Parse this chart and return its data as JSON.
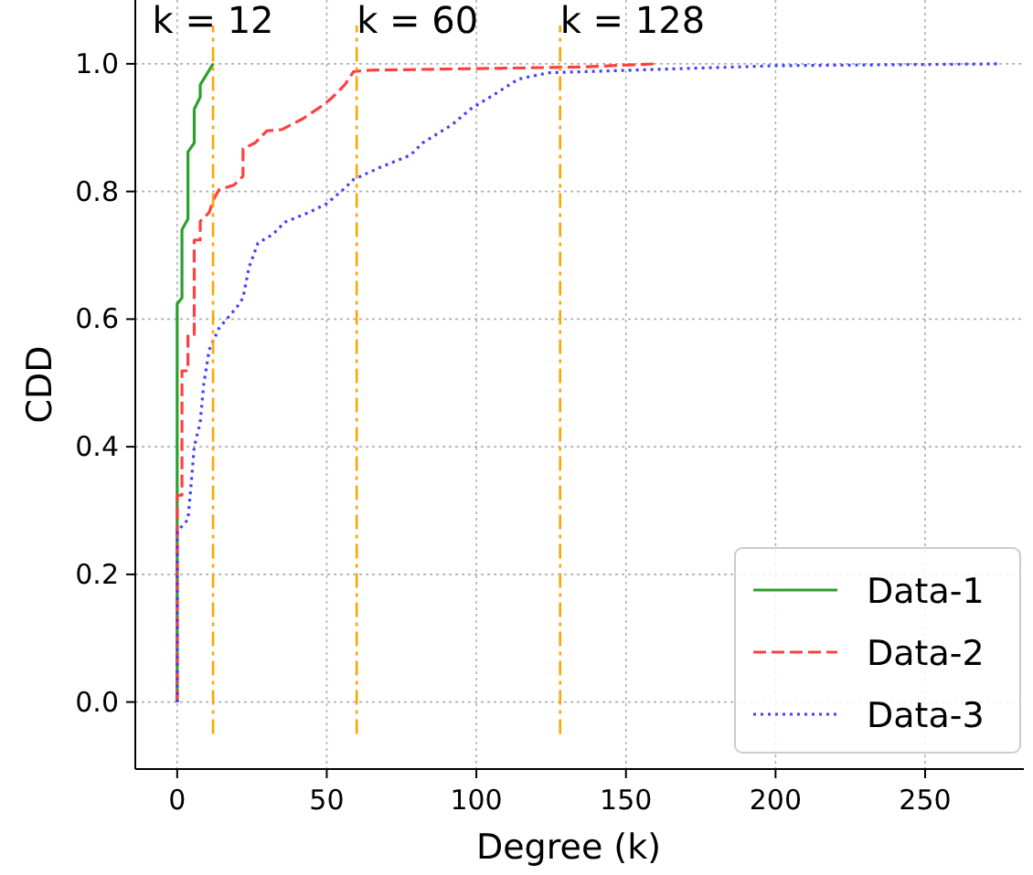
{
  "chart_data": {
    "type": "line",
    "xlabel": "Degree (k)",
    "ylabel": "CDD",
    "xlim": [
      -14,
      283
    ],
    "xticks": [
      0,
      50,
      100,
      150,
      200,
      250
    ],
    "ylim": [
      -0.105,
      1.1
    ],
    "yticks": [
      {
        "value": 0,
        "label": "0.0"
      },
      {
        "value": 0.2,
        "label": "0.2"
      },
      {
        "value": 0.4,
        "label": "0.4"
      },
      {
        "value": 0.6,
        "label": "0.6"
      },
      {
        "value": 0.8,
        "label": "0.8"
      },
      {
        "value": 1,
        "label": "1.0"
      }
    ],
    "grid": true,
    "legend": "bottom right",
    "series": [
      {
        "name": "Data-1",
        "color": "#2ca02c",
        "line_style": "solid",
        "x": [
          0,
          0,
          1.6,
          1.6,
          3.6,
          3.6,
          5.7,
          5.7,
          7.7,
          7.7,
          12
        ],
        "values": [
          0,
          0.624,
          0.633,
          0.74,
          0.757,
          0.862,
          0.876,
          0.929,
          0.948,
          0.967,
          1.0
        ]
      },
      {
        "name": "Data-2",
        "color": "#ff4040",
        "line_style": "dashed",
        "x": [
          0,
          0,
          1.6,
          1.6,
          3.6,
          3.6,
          5.7,
          5.7,
          7.7,
          7.7,
          10.7,
          12,
          14,
          19,
          22,
          22,
          26,
          30,
          35,
          42,
          49,
          52,
          56,
          59,
          64,
          135,
          160
        ],
        "values": [
          0,
          0.324,
          0.324,
          0.519,
          0.519,
          0.576,
          0.576,
          0.724,
          0.724,
          0.753,
          0.767,
          0.786,
          0.803,
          0.81,
          0.824,
          0.867,
          0.876,
          0.895,
          0.897,
          0.914,
          0.936,
          0.948,
          0.967,
          0.988,
          0.99,
          0.995,
          1.0
        ]
      },
      {
        "name": "Data-3",
        "color": "#4040ff",
        "line_style": "dotted",
        "x": [
          0,
          0,
          3.6,
          4.7,
          5.7,
          7.7,
          8.8,
          10.7,
          14,
          20,
          22,
          24,
          27,
          32,
          36,
          44,
          50,
          56,
          59,
          68,
          78,
          82,
          92,
          98,
          106,
          114,
          124,
          200,
          275
        ],
        "values": [
          0,
          0.267,
          0.286,
          0.343,
          0.4,
          0.438,
          0.495,
          0.552,
          0.586,
          0.619,
          0.633,
          0.681,
          0.719,
          0.733,
          0.752,
          0.767,
          0.781,
          0.805,
          0.819,
          0.838,
          0.857,
          0.876,
          0.905,
          0.929,
          0.952,
          0.976,
          0.986,
          0.997,
          1.0
        ]
      }
    ],
    "ref_lines": [
      {
        "axis": "x",
        "value": 12,
        "label": "k = 12",
        "color": "#ffa500",
        "line_style": "dashdot"
      },
      {
        "axis": "x",
        "value": 60,
        "label": "k = 60",
        "color": "#ffa500",
        "line_style": "dashdot"
      },
      {
        "axis": "x",
        "value": 128,
        "label": "k = 128",
        "color": "#ffa500",
        "line_style": "dashdot"
      }
    ]
  }
}
